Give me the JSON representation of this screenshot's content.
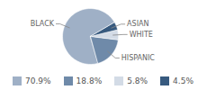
{
  "chart_data": {
    "type": "pie",
    "categories": [
      "BLACK",
      "HISPANIC",
      "WHITE",
      "ASIAN"
    ],
    "values": [
      70.9,
      18.8,
      5.8,
      4.5
    ],
    "value_labels": [
      "70.9%",
      "18.8%",
      "5.8%",
      "4.5%"
    ],
    "colors": [
      "#9fb0c6",
      "#6f8aa9",
      "#d3dbe6",
      "#375a7f"
    ],
    "legend": "bottom"
  }
}
